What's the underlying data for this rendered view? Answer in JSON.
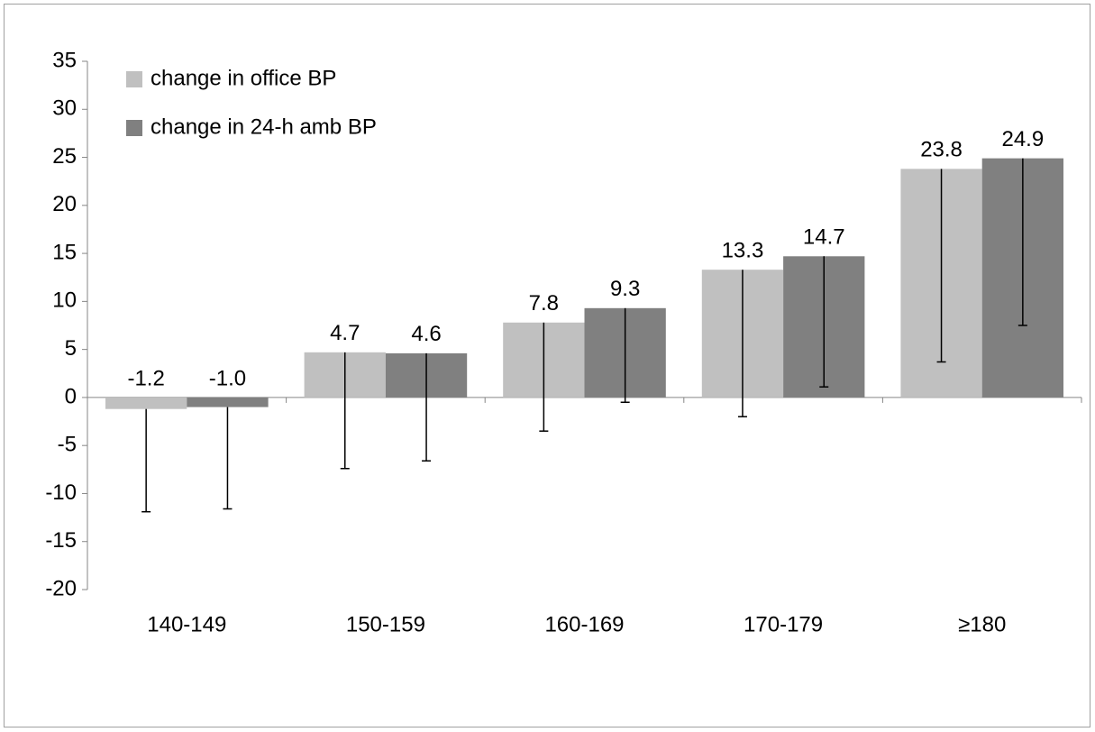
{
  "chart_data": {
    "type": "bar",
    "categories": [
      "140-149",
      "150-159",
      "160-169",
      "170-179",
      "≥180"
    ],
    "series": [
      {
        "name": "change in office BP",
        "color": "#c0c0c0",
        "values": [
          -1.2,
          4.7,
          7.8,
          13.3,
          23.8
        ],
        "value_labels": [
          "-1.2",
          "4.7",
          "7.8",
          "13.3",
          "23.8"
        ],
        "errors": [
          10.7,
          12.1,
          11.3,
          15.3,
          20.1
        ]
      },
      {
        "name": "change in 24-h amb BP",
        "color": "#808080",
        "values": [
          -1.0,
          4.6,
          9.3,
          14.7,
          24.9
        ],
        "value_labels": [
          "-1.0",
          "4.6",
          "9.3",
          "14.7",
          "24.9"
        ],
        "errors": [
          10.6,
          11.2,
          9.8,
          13.6,
          17.4
        ]
      }
    ],
    "ylim": [
      -20,
      35
    ],
    "yticks": [
      -20,
      -15,
      -10,
      -5,
      0,
      5,
      10,
      15,
      20,
      25,
      30,
      35
    ],
    "legend": "top-left"
  }
}
